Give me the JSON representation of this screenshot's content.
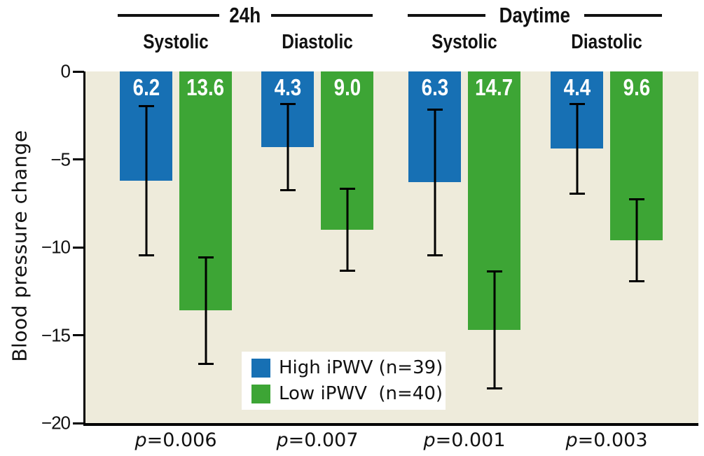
{
  "figure": {
    "colors": {
      "high_ipwv_blue": "#1770b4",
      "low_ipwv_green": "#3da535",
      "plot_background": "#eeebdb",
      "axis_black": "#000000",
      "bar_label_white": "#ffffff"
    }
  },
  "chart_data": {
    "type": "bar",
    "title": "",
    "ylabel": "Blood pressure change",
    "xlabel": "",
    "ylim": [
      -20,
      0
    ],
    "yticks": [
      {
        "value": 0,
        "label": "0"
      },
      {
        "value": -5,
        "label": "−5"
      },
      {
        "value": -10,
        "label": "−10"
      },
      {
        "value": -15,
        "label": "−15"
      },
      {
        "value": -20,
        "label": "−20"
      }
    ],
    "period_headers": [
      "24h",
      "Daytime"
    ],
    "category_headers": [
      "Systolic",
      "Diastolic",
      "Systolic",
      "Diastolic"
    ],
    "categories": [
      "24h Systolic",
      "24h Diastolic",
      "Daytime Systolic",
      "Daytime Diastolic"
    ],
    "series": [
      {
        "name": "High iPWV (n=39)",
        "color": "#1770b4",
        "values": [
          -6.2,
          -4.3,
          -6.3,
          -4.4
        ],
        "bar_labels": [
          "6.2",
          "4.3",
          "6.3",
          "4.4"
        ],
        "errors": [
          4.3,
          2.5,
          4.2,
          2.6
        ]
      },
      {
        "name": "Low iPWV (n=40)",
        "color": "#3da535",
        "values": [
          -13.6,
          -9.0,
          -14.7,
          -9.6
        ],
        "bar_labels": [
          "13.6",
          "9.0",
          "14.7",
          "9.6"
        ],
        "errors": [
          3.1,
          2.4,
          3.4,
          2.4
        ]
      }
    ],
    "p_values": [
      "p=0.006",
      "p=0.007",
      "p=0.001",
      "p=0.003"
    ],
    "legend": {
      "position": "inside-bottom-center",
      "items": [
        "High iPWV (n=39)",
        "Low iPWV  (n=40)"
      ]
    },
    "grid": false
  }
}
